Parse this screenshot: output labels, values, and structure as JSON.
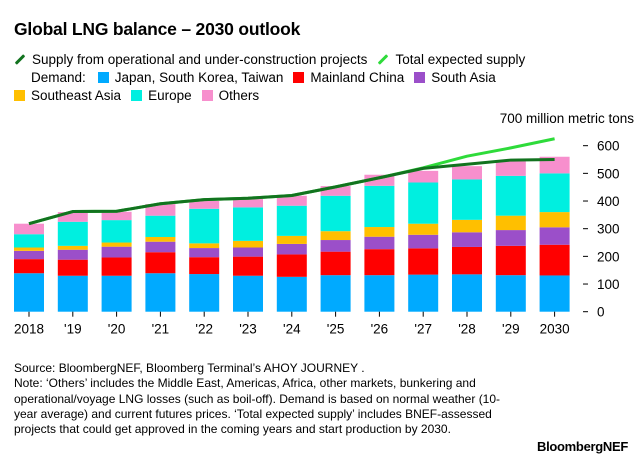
{
  "chart_data": {
    "type": "bar",
    "stacked": true,
    "title": "Global LNG balance – 2030 outlook",
    "unit_label": "700 million metric tons",
    "categories": [
      "2018",
      "'19",
      "'20",
      "'21",
      "'22",
      "'23",
      "'24",
      "'25",
      "'26",
      "'27",
      "'28",
      "'29",
      "2030"
    ],
    "ylim": [
      0,
      700
    ],
    "yticks": [
      0,
      100,
      200,
      300,
      400,
      500,
      600
    ],
    "grid": false,
    "legend_position": "top",
    "demand_label": "Demand:",
    "series": [
      {
        "name": "Japan, South Korea, Taiwan",
        "color": "#00aaff",
        "values": [
          139,
          130,
          130,
          139,
          136,
          130,
          126,
          132,
          132,
          134,
          135,
          132,
          131
        ]
      },
      {
        "name": "Mainland China",
        "color": "#ff0000",
        "values": [
          51,
          58,
          66,
          76,
          61,
          69,
          81,
          85,
          94,
          95,
          99,
          106,
          111
        ]
      },
      {
        "name": "South Asia",
        "color": "#9b4fc9",
        "values": [
          30,
          36,
          39,
          38,
          33,
          33,
          38,
          42,
          45,
          49,
          53,
          57,
          63
        ]
      },
      {
        "name": "Southeast Asia",
        "color": "#ffbf00",
        "values": [
          12,
          14,
          15,
          17,
          17,
          24,
          29,
          32,
          35,
          40,
          45,
          52,
          55
        ]
      },
      {
        "name": "Europe",
        "color": "#00efe0",
        "values": [
          48,
          87,
          81,
          77,
          125,
          121,
          109,
          128,
          149,
          149,
          146,
          144,
          140
        ]
      },
      {
        "name": "Others",
        "color": "#f78fcd",
        "values": [
          38,
          35,
          30,
          42,
          28,
          30,
          36,
          35,
          40,
          42,
          48,
          53,
          60
        ]
      }
    ],
    "lines": [
      {
        "name": "Supply from operational and under-construction projects",
        "color": "#12731f",
        "values": [
          318,
          362,
          363,
          390,
          405,
          410,
          420,
          451,
          484,
          518,
          533,
          548,
          550
        ]
      },
      {
        "name": "Total expected supply",
        "color": "#2edb3a",
        "values": [
          318,
          362,
          363,
          390,
          405,
          410,
          420,
          451,
          484,
          520,
          562,
          592,
          625
        ]
      }
    ]
  },
  "notes": {
    "source": "Source: BloombergNEF, Bloomberg Terminal’s AHOY JOURNEY .",
    "note": "Note: ‘Others’ includes the Middle East, Americas, Africa, other markets, bunkering and operational/voyage LNG losses (such as boil-off). Demand is based on normal weather (10-year average) and current futures prices. ‘Total expected supply’ includes BNEF-assessed projects that could get approved in the coming years and start production by 2030."
  },
  "logo": "BloombergNEF"
}
